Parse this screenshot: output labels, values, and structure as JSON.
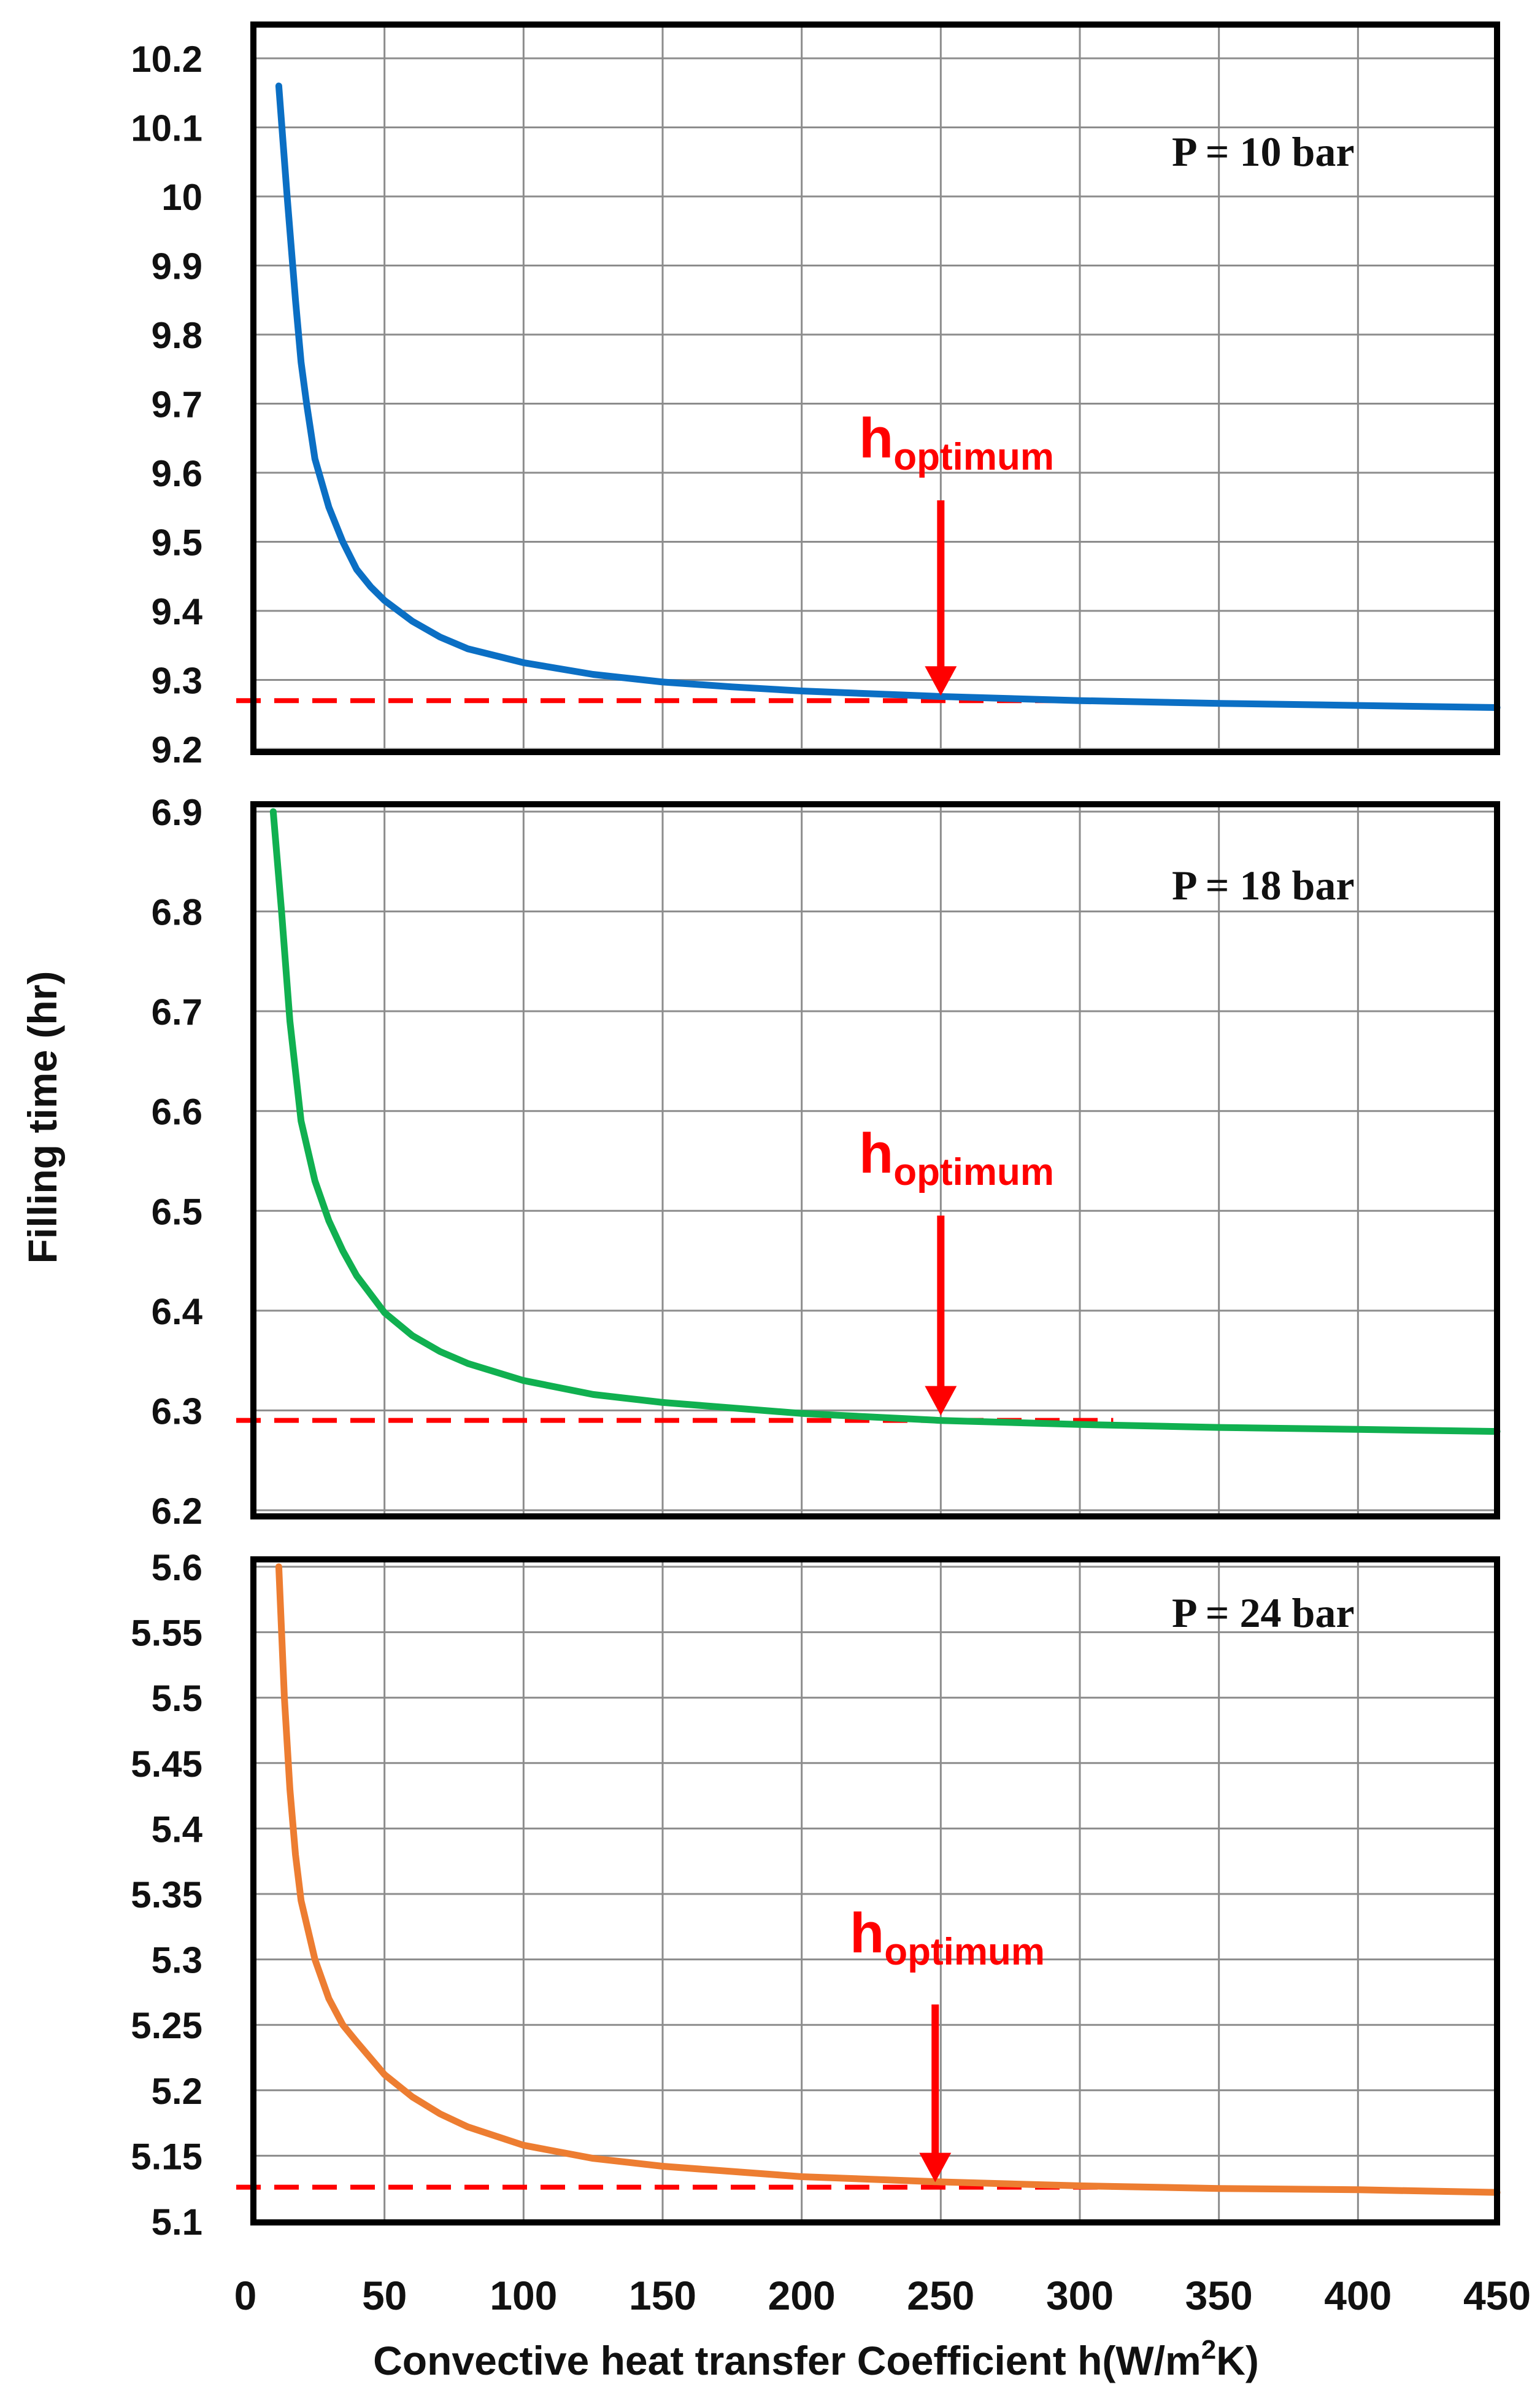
{
  "figure": {
    "ylabel": "Filling time (hr)",
    "xlabel": "Convective heat transfer Coefficient h(W/m",
    "xlabel_sup": "2",
    "xlabel_end": "K)",
    "x_ticks": [
      "0",
      "50",
      "100",
      "150",
      "200",
      "250",
      "300",
      "350",
      "400",
      "450"
    ],
    "colors": {
      "frame": "#000000",
      "grid": "#8c8c8c",
      "annotation": "#ff0000",
      "p10": "#0b6fc4",
      "p18": "#10b050",
      "p24": "#ed7d31"
    }
  },
  "chart_data": [
    {
      "type": "line",
      "title": "P = 10 bar",
      "xlabel": "Convective heat transfer Coefficient h(W/m2K)",
      "ylabel": "Filling time (hr)",
      "xlim": [
        0,
        450
      ],
      "ylim": [
        9.2,
        10.2
      ],
      "y_ticks": [
        "9.2",
        "9.3",
        "9.4",
        "9.5",
        "9.6",
        "9.7",
        "9.8",
        "9.9",
        "10",
        "10.1",
        "10.2"
      ],
      "y_tick_values": [
        9.2,
        9.3,
        9.4,
        9.5,
        9.6,
        9.7,
        9.8,
        9.9,
        10,
        10.1,
        10.2
      ],
      "grid": true,
      "series": [
        {
          "name": "P = 10 bar",
          "color": "#0b6fc4",
          "x": [
            12,
            15,
            18,
            20,
            22,
            25,
            30,
            35,
            40,
            45,
            50,
            60,
            70,
            80,
            100,
            125,
            150,
            175,
            200,
            250,
            300,
            350,
            400,
            450
          ],
          "y": [
            10.16,
            10.0,
            9.85,
            9.76,
            9.7,
            9.62,
            9.55,
            9.5,
            9.46,
            9.435,
            9.415,
            9.385,
            9.362,
            9.345,
            9.325,
            9.308,
            9.297,
            9.29,
            9.284,
            9.276,
            9.27,
            9.266,
            9.263,
            9.26
          ]
        }
      ],
      "annotation": {
        "label": "h",
        "subscript": "optimum",
        "x": 250,
        "reference_y": 9.27,
        "reference_line_x": [
          0,
          312
        ]
      }
    },
    {
      "type": "line",
      "title": "P = 18 bar",
      "xlabel": "Convective heat transfer Coefficient h(W/m2K)",
      "ylabel": "Filling time (hr)",
      "xlim": [
        0,
        450
      ],
      "ylim": [
        6.2,
        6.9
      ],
      "y_ticks": [
        "6.2",
        "6.3",
        "6.4",
        "6.5",
        "6.6",
        "6.7",
        "6.8",
        "6.9"
      ],
      "y_tick_values": [
        6.2,
        6.3,
        6.4,
        6.5,
        6.6,
        6.7,
        6.8,
        6.9
      ],
      "grid": true,
      "series": [
        {
          "name": "P = 18 bar",
          "color": "#10b050",
          "x": [
            10,
            13,
            16,
            20,
            25,
            30,
            35,
            40,
            50,
            60,
            70,
            80,
            100,
            125,
            150,
            200,
            250,
            300,
            350,
            400,
            450
          ],
          "y": [
            6.9,
            6.8,
            6.69,
            6.59,
            6.53,
            6.49,
            6.46,
            6.435,
            6.398,
            6.375,
            6.359,
            6.347,
            6.33,
            6.316,
            6.308,
            6.297,
            6.29,
            6.286,
            6.283,
            6.281,
            6.279
          ]
        }
      ],
      "annotation": {
        "label": "h",
        "subscript": "optimum",
        "x": 250,
        "reference_y": 6.29,
        "reference_line_x": [
          0,
          312
        ]
      }
    },
    {
      "type": "line",
      "title": "P = 24 bar",
      "xlabel": "Convective heat transfer Coefficient h(W/m2K)",
      "ylabel": "Filling time (hr)",
      "xlim": [
        0,
        450
      ],
      "ylim": [
        5.1,
        5.6
      ],
      "y_ticks": [
        "5.1",
        "5.15",
        "5.2",
        "5.25",
        "5.3",
        "5.35",
        "5.4",
        "5.45",
        "5.5",
        "5.55",
        "5.6"
      ],
      "y_tick_values": [
        5.1,
        5.15,
        5.2,
        5.25,
        5.3,
        5.35,
        5.4,
        5.45,
        5.5,
        5.55,
        5.6
      ],
      "grid": true,
      "series": [
        {
          "name": "P = 24 bar",
          "color": "#ed7d31",
          "x": [
            12,
            14,
            16,
            18,
            20,
            25,
            30,
            35,
            40,
            50,
            60,
            70,
            80,
            100,
            125,
            150,
            200,
            250,
            300,
            350,
            400,
            450
          ],
          "y": [
            5.6,
            5.5,
            5.43,
            5.38,
            5.345,
            5.3,
            5.27,
            5.25,
            5.237,
            5.212,
            5.195,
            5.182,
            5.172,
            5.158,
            5.148,
            5.142,
            5.134,
            5.13,
            5.127,
            5.125,
            5.124,
            5.122
          ]
        }
      ],
      "annotation": {
        "label": "h",
        "subscript": "optimum",
        "x": 248,
        "reference_y": 5.126,
        "reference_line_x": [
          0,
          312
        ]
      }
    }
  ]
}
